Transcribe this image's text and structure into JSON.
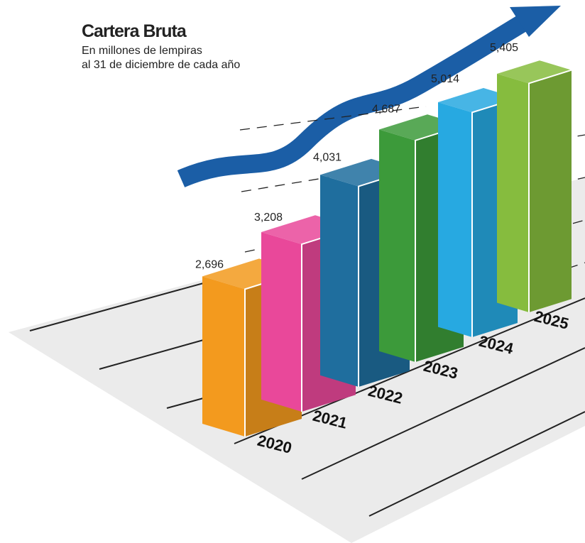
{
  "chart_data": {
    "type": "bar3d",
    "title": "Cartera Bruta",
    "subtitle": [
      "En millones de lempiras",
      "al 31 de diciembre de cada año"
    ],
    "categories": [
      "2020",
      "2021",
      "2022",
      "2023",
      "2024",
      "2025"
    ],
    "values": [
      2696,
      3208,
      4031,
      4687,
      5014,
      5405
    ],
    "value_labels": [
      "2,696",
      "3,208",
      "4,031",
      "4,687",
      "5,014",
      "5,405"
    ],
    "colors": [
      "#f39a1e",
      "#e9489a",
      "#1f6e9e",
      "#3c9a3a",
      "#27a9e1",
      "#86bc3e"
    ]
  }
}
